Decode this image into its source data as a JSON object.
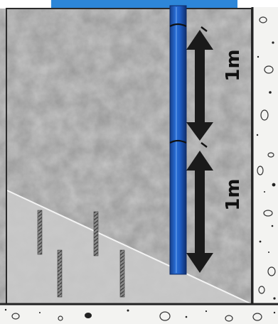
{
  "labels": {
    "upper_spacing": "1m",
    "lower_spacing": "1m"
  },
  "colors": {
    "pipe": "#1f5fc7",
    "pipe_highlight": "#4f8ef0",
    "top_band": "#2d86d8",
    "soil": "#8c8c8c",
    "concrete": "#f3f3f1",
    "rebar": "#7a7a7a",
    "arrow": "#1a1a1a"
  },
  "icons": {
    "dimension_arrow": "double-headed-vertical-arrow"
  }
}
